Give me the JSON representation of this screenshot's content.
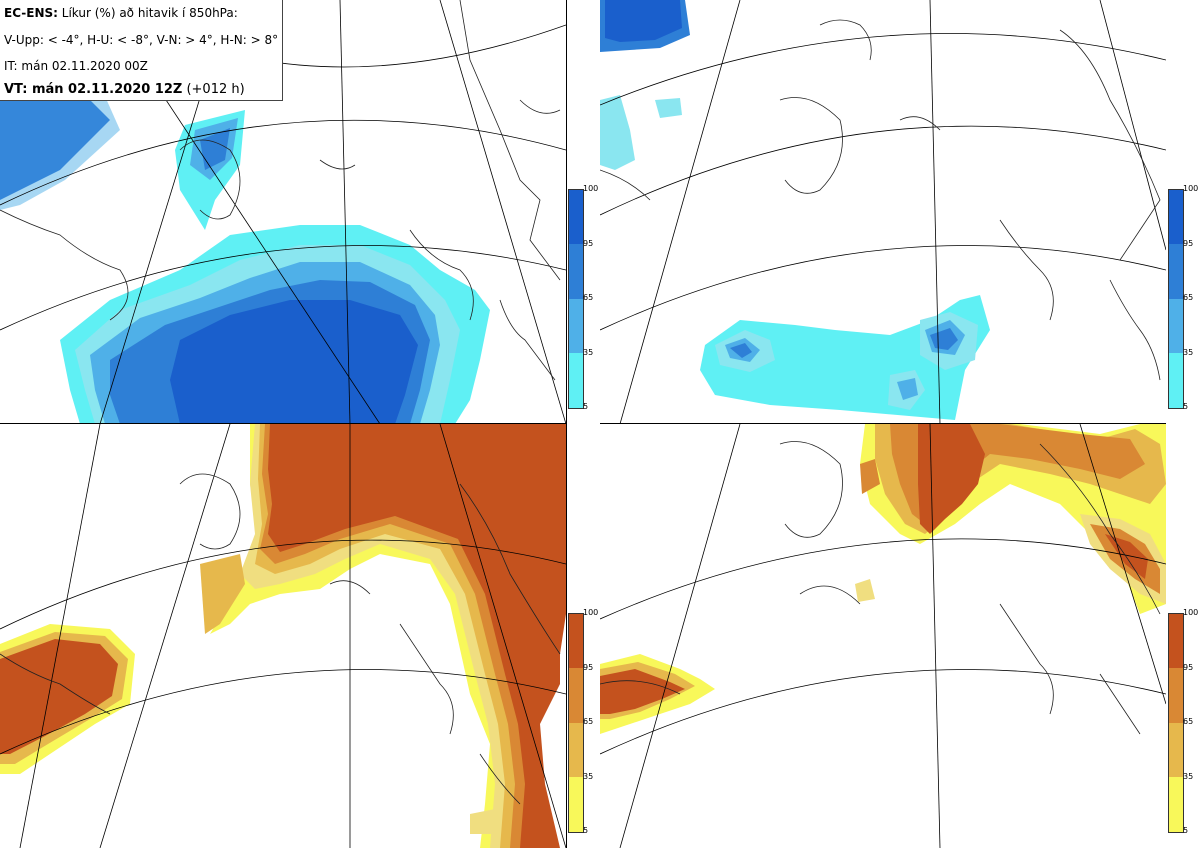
{
  "header": {
    "model": "EC-ENS:",
    "title": "Líkur (%) að hitavik í 850hPa:",
    "thresholds": "V-Upp: < -4°, H-U: < -8°, V-N: > 4°, H-N: > 8°",
    "init_time": "IT: mán 02.11.2020 00Z",
    "valid_label": "VT: mán 02.11.2020 12Z",
    "valid_offset": "(+012 h)"
  },
  "panels": [
    {
      "id": "top-left",
      "label": "V-Upp"
    },
    {
      "id": "top-right",
      "label": "H-U"
    },
    {
      "id": "bottom-left",
      "label": "V-N"
    },
    {
      "id": "bottom-right",
      "label": "H-N"
    }
  ],
  "colorbars": {
    "cold": {
      "ticks": [
        "100",
        "95",
        "65",
        "35",
        "5"
      ],
      "colors": [
        "#1a5fcc",
        "#2e7fd6",
        "#4fb0e8",
        "#8ae6f0",
        "#5ff0f4"
      ]
    },
    "warm": {
      "ticks": [
        "100",
        "95",
        "65",
        "35",
        "5"
      ],
      "colors": [
        "#c4521e",
        "#d98834",
        "#e6b84c",
        "#f0de80",
        "#f8f85a"
      ]
    }
  }
}
